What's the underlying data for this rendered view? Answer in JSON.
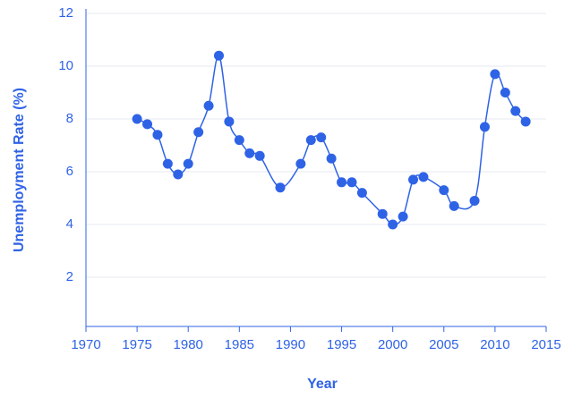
{
  "chart_data": {
    "type": "line",
    "x_label": "Year",
    "y_label": "Unemployment Rate (%)",
    "x": [
      1975,
      1976,
      1977,
      1978,
      1979,
      1980,
      1981,
      1982,
      1983,
      1984,
      1985,
      1986,
      1987,
      1989,
      1991,
      1992,
      1993,
      1994,
      1995,
      1996,
      1997,
      1999,
      2000,
      2001,
      2002,
      2003,
      2005,
      2006,
      2008,
      2009,
      2010,
      2011,
      2012,
      2013
    ],
    "series": [
      {
        "color": "#2f63e6",
        "values": [
          8.0,
          7.8,
          7.4,
          6.3,
          5.9,
          6.3,
          7.5,
          8.5,
          10.4,
          7.9,
          7.2,
          6.7,
          6.6,
          5.4,
          6.3,
          7.2,
          7.3,
          6.5,
          5.6,
          5.6,
          5.2,
          4.4,
          4.0,
          4.3,
          5.7,
          5.8,
          5.3,
          4.7,
          4.9,
          7.7,
          9.7,
          9.0,
          8.3,
          7.9
        ]
      }
    ],
    "xlim": [
      1970,
      2015
    ],
    "xticks": [
      1970,
      1975,
      1980,
      1985,
      1990,
      1995,
      2000,
      2005,
      2010,
      2015
    ],
    "ylim": [
      0,
      12
    ],
    "yticks": [
      2,
      4,
      6,
      8,
      10,
      12
    ],
    "grid": true
  }
}
